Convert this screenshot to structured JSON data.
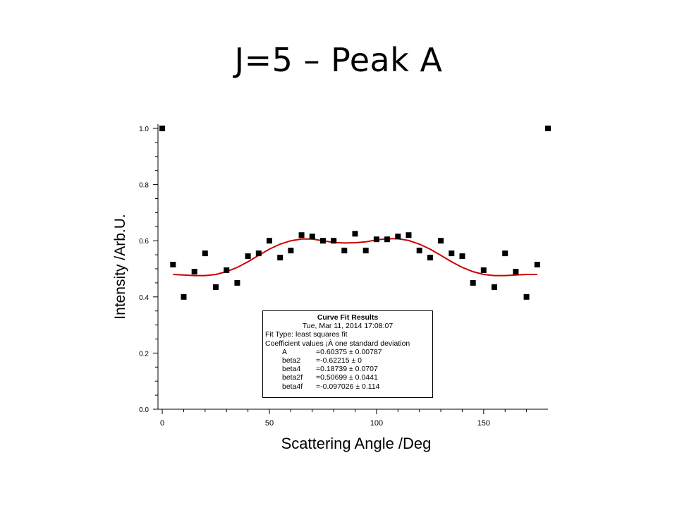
{
  "slide": {
    "title": "J=5 – Peak A"
  },
  "chart_data": {
    "type": "scatter",
    "xlabel": "Scattering Angle /Deg",
    "ylabel": "Intensity /Arb.U.",
    "xlim": [
      -2,
      180
    ],
    "ylim": [
      0,
      1.0
    ],
    "xticks": [
      0,
      50,
      100,
      150
    ],
    "yticks": [
      0.0,
      0.2,
      0.4,
      0.6,
      0.8,
      1.0
    ],
    "xtick_labels": [
      "0",
      "50",
      "100",
      "150"
    ],
    "ytick_labels": [
      "0.0",
      "0.2",
      "0.4",
      "0.6",
      "0.8",
      "1.0"
    ],
    "grid": false,
    "series": [
      {
        "marker": "square",
        "color": "#000000",
        "x": [
          0,
          5,
          10,
          15,
          20,
          25,
          30,
          35,
          40,
          45,
          50,
          55,
          60,
          65,
          70,
          75,
          80,
          85,
          90,
          95,
          100,
          105,
          110,
          115,
          120,
          125,
          130,
          135,
          140,
          145,
          150,
          155,
          160,
          165,
          170,
          175,
          180
        ],
        "y": [
          1.0,
          0.515,
          0.4,
          0.49,
          0.555,
          0.435,
          0.495,
          0.45,
          0.545,
          0.555,
          0.6,
          0.54,
          0.565,
          0.62,
          0.615,
          0.6,
          0.6,
          0.565,
          0.625,
          0.565,
          0.605,
          0.605,
          0.615,
          0.62,
          0.565,
          0.54,
          0.6,
          0.555,
          0.545,
          0.45,
          0.495,
          0.435,
          0.555,
          0.49,
          0.4,
          0.515,
          1.0
        ]
      },
      {
        "type": "line",
        "color": "#cc0000",
        "x": [
          5,
          10,
          15,
          20,
          25,
          30,
          35,
          40,
          45,
          50,
          55,
          60,
          65,
          70,
          75,
          80,
          85,
          90,
          95,
          100,
          105,
          110,
          115,
          120,
          125,
          130,
          135,
          140,
          145,
          150,
          155,
          160,
          165,
          170,
          175
        ],
        "y": [
          0.48,
          0.478,
          0.476,
          0.476,
          0.48,
          0.49,
          0.505,
          0.525,
          0.548,
          0.57,
          0.588,
          0.6,
          0.606,
          0.606,
          0.6,
          0.594,
          0.592,
          0.593,
          0.596,
          0.603,
          0.607,
          0.607,
          0.601,
          0.588,
          0.57,
          0.548,
          0.525,
          0.505,
          0.49,
          0.48,
          0.476,
          0.476,
          0.478,
          0.48,
          0.48
        ]
      }
    ],
    "annotations": {
      "fit_title": "Curve Fit Results",
      "fit_date": "Tue, Mar 11, 2014 17:08:07",
      "fit_type": "Fit Type: least squares fit",
      "coef_header": "Coefficient values ¡À one standard deviation",
      "coefficients": [
        {
          "name": "A",
          "value": "=0.60375 ± 0.00787"
        },
        {
          "name": "beta2",
          "value": "=-0.62215 ± 0"
        },
        {
          "name": "beta4",
          "value": "=0.18739 ± 0.0707"
        },
        {
          "name": "beta2f",
          "value": "=0.50699 ± 0.0441"
        },
        {
          "name": "beta4f",
          "value": "=-0.097026 ± 0.114"
        }
      ]
    }
  }
}
